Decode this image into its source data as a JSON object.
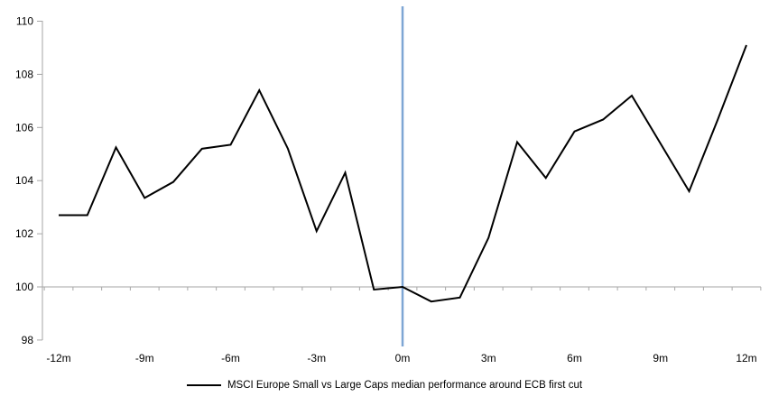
{
  "chart_data": {
    "type": "line",
    "title": "",
    "x": [
      -12,
      -11,
      -10,
      -9,
      -8,
      -7,
      -6,
      -5,
      -4,
      -3,
      -2,
      -1,
      0,
      1,
      2,
      3,
      4,
      5,
      6,
      7,
      8,
      9,
      10,
      11,
      12
    ],
    "series": [
      {
        "name": "MSCI Europe Small vs Large Caps median performance around ECB first cut",
        "color": "#000000",
        "values": [
          102.7,
          102.7,
          105.25,
          103.35,
          103.95,
          105.2,
          105.35,
          107.4,
          105.2,
          102.1,
          104.3,
          99.9,
          100.0,
          99.45,
          99.6,
          101.85,
          105.45,
          104.1,
          105.85,
          106.3,
          107.2,
          105.4,
          103.6,
          106.3,
          109.1
        ]
      }
    ],
    "x_axis": {
      "tick_labels": [
        "-12m",
        "-9m",
        "-6m",
        "-3m",
        "0m",
        "3m",
        "6m",
        "9m",
        "12m"
      ],
      "tick_positions": [
        -12,
        -9,
        -6,
        -3,
        0,
        3,
        6,
        9,
        12
      ],
      "range": [
        -12.5,
        12.5
      ],
      "minor_tick_step": 1,
      "axis_crosses_at_y": 100
    },
    "y_axis": {
      "tick_labels": [
        "98",
        "100",
        "102",
        "104",
        "106",
        "108",
        "110"
      ],
      "tick_values": [
        98,
        100,
        102,
        104,
        106,
        108,
        110
      ],
      "range": [
        98,
        110
      ]
    },
    "reference_lines": [
      {
        "orientation": "vertical",
        "x": 0,
        "color": "#7EA6D4"
      },
      {
        "orientation": "horizontal",
        "y": 100,
        "color": "#A6A6A6"
      }
    ],
    "legend": {
      "position": "bottom-center",
      "entries": [
        {
          "label": "MSCI Europe Small vs Large Caps median performance around ECB first cut",
          "color": "#000000",
          "marker": "line"
        }
      ]
    },
    "grid": false,
    "colors": {
      "series_line": "#000000",
      "axis_line": "#A6A6A6",
      "event_line": "#7EA6D4",
      "label_text": "#000000"
    }
  }
}
